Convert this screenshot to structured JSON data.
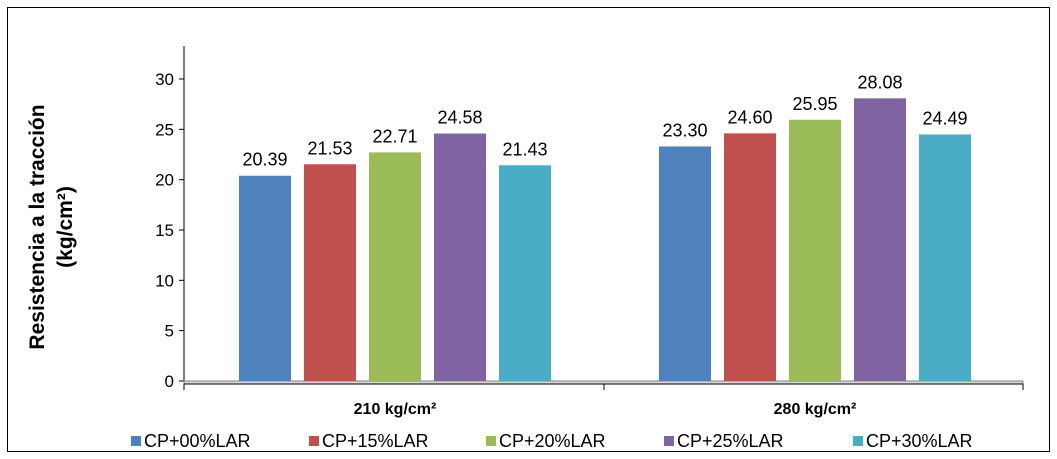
{
  "chart_data": {
    "type": "bar",
    "title": "",
    "xlabel": "",
    "ylabel": "Resistencia a la tracción (kg/cm²)",
    "ylabel_lines": [
      "Resistencia a la tracción",
      "(kg/cm²)"
    ],
    "categories": [
      "210 kg/cm²",
      "280 kg/cm²"
    ],
    "ylim": [
      0,
      30
    ],
    "yticks": [
      0,
      5,
      10,
      15,
      20,
      25,
      30
    ],
    "grid": false,
    "legend_position": "bottom",
    "series": [
      {
        "name": "CP+00%LAR",
        "color": "#4F81BD",
        "values": [
          20.39,
          23.3
        ],
        "labels": [
          "20.39",
          "23.30"
        ]
      },
      {
        "name": "CP+15%LAR",
        "color": "#C0504D",
        "values": [
          21.53,
          24.6
        ],
        "labels": [
          "21.53",
          "24.60"
        ]
      },
      {
        "name": "CP+20%LAR",
        "color": "#9BBB59",
        "values": [
          22.71,
          25.95
        ],
        "labels": [
          "22.71",
          "25.95"
        ]
      },
      {
        "name": "CP+25%LAR",
        "color": "#8064A2",
        "values": [
          24.58,
          28.08
        ],
        "labels": [
          "24.58",
          "28.08"
        ]
      },
      {
        "name": "CP+30%LAR",
        "color": "#4BACC6",
        "values": [
          21.43,
          24.49
        ],
        "labels": [
          "21.43",
          "24.49"
        ]
      }
    ]
  }
}
